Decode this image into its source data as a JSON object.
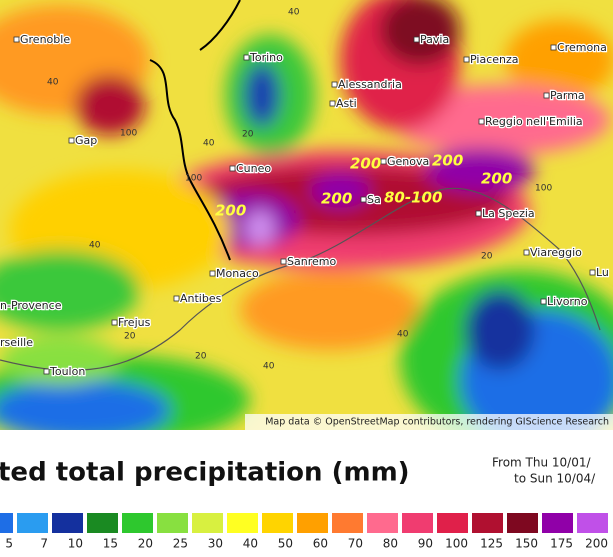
{
  "map": {
    "attribution": "Map data © OpenStreetMap contributors, rendering GIScience Research",
    "cities": [
      {
        "label": "Grenoble"
      },
      {
        "label": "Torino"
      },
      {
        "label": "Pavia"
      },
      {
        "label": "Cremona"
      },
      {
        "label": "Alessandria"
      },
      {
        "label": "Piacenza"
      },
      {
        "label": "Asti"
      },
      {
        "label": "Parma"
      },
      {
        "label": "Reggio nell'Emilia"
      },
      {
        "label": "Gap"
      },
      {
        "label": "Cuneo"
      },
      {
        "label": "Genova"
      },
      {
        "label": "La Spezia"
      },
      {
        "label": "Viareggio"
      },
      {
        "label": "Monaco"
      },
      {
        "label": "Sanremo"
      },
      {
        "label": "Antibes"
      },
      {
        "label": "Frejus"
      },
      {
        "label": "Livorno"
      },
      {
        "label": "n-Provence"
      },
      {
        "label": "rseille"
      },
      {
        "label": "Toulon"
      },
      {
        "label": "Lu"
      },
      {
        "label": "Sa"
      }
    ],
    "annotations": [
      "200",
      "200",
      "200",
      "200",
      "200",
      "80-100"
    ],
    "contour_labels": [
      "40",
      "40",
      "100",
      "40",
      "20",
      "100",
      "40",
      "40",
      "20",
      "40",
      "20",
      "100",
      "20"
    ]
  },
  "legend": {
    "title": "ted total precipitation (mm)",
    "period_from": "From Thu 10/01/",
    "period_to": "to Sun 10/04/",
    "values": [
      5,
      7,
      10,
      15,
      20,
      25,
      30,
      40,
      50,
      60,
      70,
      80,
      90,
      100,
      125,
      150,
      175,
      200
    ],
    "colors": [
      "#1e6ee6",
      "#2a9cf0",
      "#14309e",
      "#1a8a22",
      "#2ec82e",
      "#88e040",
      "#d8f040",
      "#ffff22",
      "#ffd400",
      "#ffa000",
      "#ff7a30",
      "#ff6a8e",
      "#f03c70",
      "#e0204a",
      "#b01030",
      "#7e0820",
      "#9000a8",
      "#c050e8"
    ]
  }
}
